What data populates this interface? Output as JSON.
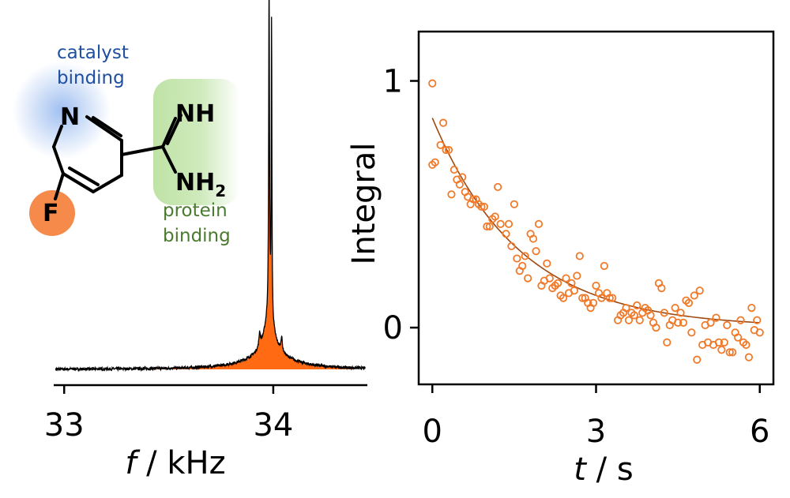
{
  "colors": {
    "catalyst": "#1f4fa0",
    "catalyst_glow": "#9bbcf0",
    "protein": "#4a7a2e",
    "protein_glow": "#bfe3a6",
    "fluorine": "#f58a4b",
    "spectrum_fill": "#ff6a13",
    "points": "#f07a2a",
    "fit": "#a0480f"
  },
  "molecule": {
    "atom_n": "N",
    "atom_f": "F",
    "imine": "NH",
    "amine": "NH",
    "amine_sub": "2",
    "catalyst_note": [
      "catalyst",
      "binding"
    ],
    "protein_note": [
      "protein",
      "binding"
    ]
  },
  "chart_data": [
    {
      "type": "line",
      "name": "spectrum",
      "xlabel_italic": "f",
      "xlabel_rest": " / kHz",
      "xlim": [
        32.95,
        34.45
      ],
      "xticks": [
        33,
        34
      ],
      "xtick_labels": [
        "33",
        "34"
      ],
      "peak_center": 33.98,
      "peak_label": "",
      "baseline": 0,
      "peak_height": 1.0
    },
    {
      "type": "scatter",
      "xlabel_italic": "t",
      "xlabel_rest": " / s",
      "ylabel": "Integral",
      "xlim": [
        -0.25,
        6.25
      ],
      "ylim": [
        -0.23,
        1.2
      ],
      "xticks": [
        0,
        3,
        6
      ],
      "xtick_labels": [
        "0",
        "3",
        "6"
      ],
      "yticks": [
        0,
        1
      ],
      "ytick_labels": [
        "0",
        "1"
      ],
      "fit": {
        "model": "A*exp(-t/tau)",
        "A": 0.85,
        "tau": 1.6
      },
      "points": [
        [
          0.0,
          0.99
        ],
        [
          0.0,
          0.66
        ],
        [
          0.05,
          0.67
        ],
        [
          0.15,
          0.74
        ],
        [
          0.2,
          0.83
        ],
        [
          0.25,
          0.72
        ],
        [
          0.3,
          0.72
        ],
        [
          0.35,
          0.54
        ],
        [
          0.4,
          0.64
        ],
        [
          0.45,
          0.6
        ],
        [
          0.5,
          0.58
        ],
        [
          0.55,
          0.61
        ],
        [
          0.6,
          0.55
        ],
        [
          0.65,
          0.53
        ],
        [
          0.7,
          0.5
        ],
        [
          0.75,
          0.52
        ],
        [
          0.8,
          0.52
        ],
        [
          0.85,
          0.5
        ],
        [
          0.9,
          0.49
        ],
        [
          0.95,
          0.49
        ],
        [
          1.0,
          0.41
        ],
        [
          1.05,
          0.41
        ],
        [
          1.1,
          0.44
        ],
        [
          1.15,
          0.45
        ],
        [
          1.2,
          0.57
        ],
        [
          1.25,
          0.42
        ],
        [
          1.35,
          0.38
        ],
        [
          1.4,
          0.42
        ],
        [
          1.45,
          0.33
        ],
        [
          1.5,
          0.5
        ],
        [
          1.55,
          0.28
        ],
        [
          1.6,
          0.23
        ],
        [
          1.65,
          0.25
        ],
        [
          1.7,
          0.29
        ],
        [
          1.75,
          0.2
        ],
        [
          1.8,
          0.38
        ],
        [
          1.85,
          0.36
        ],
        [
          1.9,
          0.31
        ],
        [
          1.95,
          0.42
        ],
        [
          2.0,
          0.17
        ],
        [
          2.05,
          0.19
        ],
        [
          2.1,
          0.26
        ],
        [
          2.15,
          0.2
        ],
        [
          2.2,
          0.16
        ],
        [
          2.25,
          0.17
        ],
        [
          2.3,
          0.18
        ],
        [
          2.35,
          0.13
        ],
        [
          2.4,
          0.12
        ],
        [
          2.45,
          0.2
        ],
        [
          2.5,
          0.14
        ],
        [
          2.55,
          0.18
        ],
        [
          2.6,
          0.15
        ],
        [
          2.65,
          0.21
        ],
        [
          2.7,
          0.29
        ],
        [
          2.75,
          0.12
        ],
        [
          2.8,
          0.12
        ],
        [
          2.85,
          0.1
        ],
        [
          2.9,
          0.08
        ],
        [
          2.95,
          0.1
        ],
        [
          3.0,
          0.17
        ],
        [
          3.05,
          0.14
        ],
        [
          3.1,
          0.12
        ],
        [
          3.15,
          0.25
        ],
        [
          3.2,
          0.14
        ],
        [
          3.25,
          0.12
        ],
        [
          3.3,
          0.12
        ],
        [
          3.4,
          0.03
        ],
        [
          3.45,
          0.05
        ],
        [
          3.5,
          0.06
        ],
        [
          3.55,
          0.08
        ],
        [
          3.6,
          0.03
        ],
        [
          3.65,
          0.06
        ],
        [
          3.7,
          0.05
        ],
        [
          3.75,
          0.09
        ],
        [
          3.8,
          0.03
        ],
        [
          3.85,
          0.06
        ],
        [
          3.9,
          0.08
        ],
        [
          3.95,
          0.07
        ],
        [
          4.0,
          0.05
        ],
        [
          4.05,
          0.02
        ],
        [
          4.1,
          0.0
        ],
        [
          4.15,
          0.18
        ],
        [
          4.2,
          0.16
        ],
        [
          4.25,
          0.06
        ],
        [
          4.3,
          -0.06
        ],
        [
          4.35,
          0.01
        ],
        [
          4.4,
          0.03
        ],
        [
          4.45,
          0.08
        ],
        [
          4.5,
          0.02
        ],
        [
          4.55,
          0.06
        ],
        [
          4.6,
          0.02
        ],
        [
          4.65,
          0.11
        ],
        [
          4.7,
          0.1
        ],
        [
          4.75,
          -0.02
        ],
        [
          4.8,
          0.13
        ],
        [
          4.85,
          -0.13
        ],
        [
          4.9,
          0.15
        ],
        [
          4.95,
          -0.07
        ],
        [
          5.0,
          0.01
        ],
        [
          5.05,
          -0.06
        ],
        [
          5.1,
          0.02
        ],
        [
          5.15,
          -0.07
        ],
        [
          5.2,
          0.04
        ],
        [
          5.25,
          -0.06
        ],
        [
          5.3,
          -0.09
        ],
        [
          5.35,
          -0.06
        ],
        [
          5.4,
          0.01
        ],
        [
          5.45,
          -0.1
        ],
        [
          5.5,
          -0.1
        ],
        [
          5.55,
          -0.02
        ],
        [
          5.6,
          -0.04
        ],
        [
          5.65,
          0.03
        ],
        [
          5.7,
          -0.06
        ],
        [
          5.75,
          -0.07
        ],
        [
          5.8,
          -0.12
        ],
        [
          5.85,
          0.08
        ],
        [
          5.9,
          -0.01
        ],
        [
          5.95,
          0.03
        ],
        [
          6.0,
          -0.02
        ]
      ]
    }
  ]
}
